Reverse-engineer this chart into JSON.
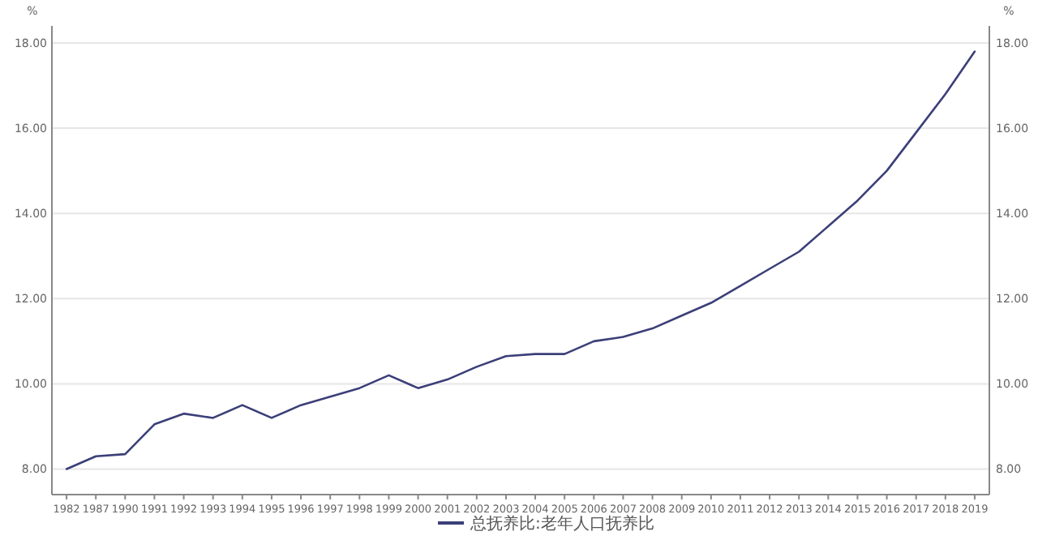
{
  "chart_data": {
    "type": "line",
    "ylabel": "%",
    "y2label": "%",
    "categories": [
      "1982",
      "1987",
      "1990",
      "1991",
      "1992",
      "1993",
      "1994",
      "1995",
      "1996",
      "1997",
      "1998",
      "1999",
      "2000",
      "2001",
      "2002",
      "2003",
      "2004",
      "2005",
      "2006",
      "2007",
      "2008",
      "2009",
      "2010",
      "2011",
      "2012",
      "2013",
      "2014",
      "2015",
      "2016",
      "2017",
      "2018",
      "2019"
    ],
    "series": [
      {
        "name": "总抚养比:老年人口抚养比",
        "color": "#3b3f78",
        "values": [
          8.0,
          8.3,
          8.35,
          9.05,
          9.3,
          9.2,
          9.5,
          9.2,
          9.5,
          9.7,
          9.9,
          10.2,
          9.9,
          10.1,
          10.4,
          10.65,
          10.7,
          10.7,
          11.0,
          11.1,
          11.3,
          11.6,
          11.9,
          12.3,
          12.7,
          13.1,
          13.7,
          14.3,
          15.0,
          15.9,
          16.8,
          17.8
        ]
      }
    ],
    "ylim": [
      7.4,
      18.4
    ],
    "yticks": [
      {
        "value": 8,
        "label": "8.00"
      },
      {
        "value": 10,
        "label": "10.00"
      },
      {
        "value": 12,
        "label": "12.00"
      },
      {
        "value": 14,
        "label": "14.00"
      },
      {
        "value": 16,
        "label": "16.00"
      },
      {
        "value": 18,
        "label": "18.00"
      }
    ],
    "y2lim": [
      7.4,
      18.4
    ],
    "y2ticks": [
      {
        "value": 8,
        "label": "8.00"
      },
      {
        "value": 10,
        "label": "10.00"
      },
      {
        "value": 12,
        "label": "12.00"
      },
      {
        "value": 14,
        "label": "14.00"
      },
      {
        "value": 16,
        "label": "16.00"
      },
      {
        "value": 18,
        "label": "18.00"
      }
    ],
    "grid": "y",
    "legend": "bottom",
    "marker": "none",
    "line_style": "solid"
  }
}
